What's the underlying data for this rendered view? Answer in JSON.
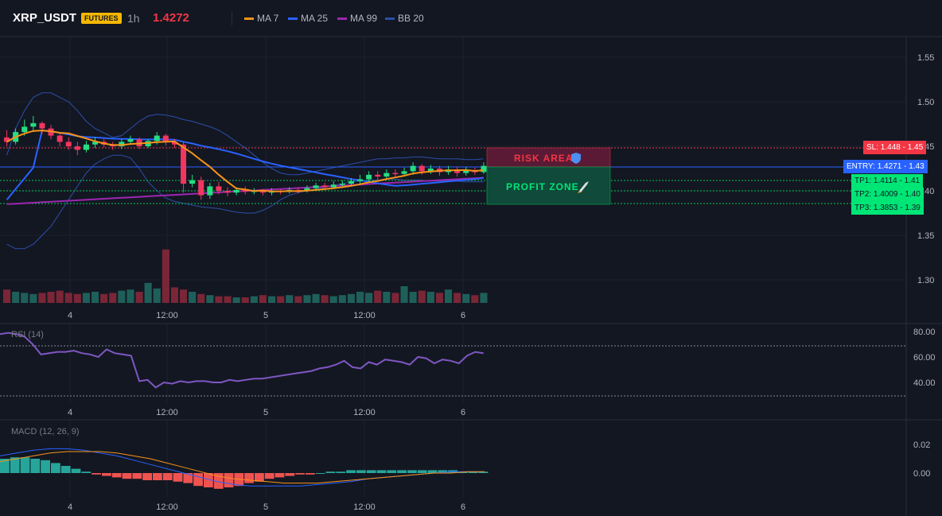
{
  "header": {
    "symbol": "XRP_USDT",
    "badge": "FUTURES",
    "timeframe": "1h",
    "price": "1.4272",
    "indicators": [
      {
        "label": "MA 7",
        "color": "#f7931a"
      },
      {
        "label": "MA 25",
        "color": "#2962ff"
      },
      {
        "label": "MA 99",
        "color": "#9c27b0"
      },
      {
        "label": "BB 20",
        "color": "#2b4fa8"
      }
    ]
  },
  "price_axis": [
    "1.55",
    "1.50",
    "1.45",
    "1.40",
    "1.35",
    "1.30"
  ],
  "time_axis": [
    "4",
    "12:00",
    "5",
    "12:00",
    "6"
  ],
  "levels": {
    "sl": "SL: 1.448 - 1.45",
    "entry": "ENTRY: 1.4271 - 1.43",
    "tp1": "TP1: 1.4114 - 1.41",
    "tp2": "TP2: 1.4009 - 1.40",
    "tp3": "TP3: 1.3853 - 1.39"
  },
  "zones": {
    "risk": "RISK AREA",
    "risk_icon": "shield-icon",
    "profit": "PROFIT ZONE",
    "profit_icon": "rocket-icon"
  },
  "rsi": {
    "label": "RSI (14)",
    "axis": [
      "80.00",
      "60.00",
      "40.00"
    ],
    "values": [
      78,
      79,
      78,
      76,
      70,
      62,
      63,
      64,
      64,
      65,
      63,
      62,
      60,
      66,
      63,
      62,
      61,
      41,
      42,
      36,
      40,
      39,
      41,
      40,
      41,
      41,
      40,
      40,
      42,
      41,
      42,
      43,
      43,
      44,
      45,
      46,
      47,
      48,
      49,
      51,
      52,
      54,
      57,
      52,
      51,
      56,
      54,
      58,
      57,
      56,
      54,
      60,
      59,
      55,
      58,
      57,
      55,
      61,
      64,
      63
    ]
  },
  "macd": {
    "label": "MACD (12, 26, 9)",
    "axis": [
      "0.02",
      "0.00"
    ],
    "hist": [
      0.01,
      0.011,
      0.011,
      0.01,
      0.009,
      0.007,
      0.005,
      0.003,
      0.001,
      -0.001,
      -0.002,
      -0.003,
      -0.004,
      -0.004,
      -0.005,
      -0.005,
      -0.005,
      -0.006,
      -0.007,
      -0.009,
      -0.01,
      -0.011,
      -0.01,
      -0.009,
      -0.007,
      -0.006,
      -0.004,
      -0.003,
      -0.002,
      -0.001,
      -0.001,
      0.0,
      0.001,
      0.001,
      0.002,
      0.002,
      0.002,
      0.002,
      0.002,
      0.002,
      0.002,
      0.002,
      0.002,
      0.002,
      0.002,
      0.001,
      0.001,
      0.001
    ]
  },
  "candles": [
    [
      1.46,
      1.455,
      1.468,
      1.45
    ],
    [
      1.455,
      1.466,
      1.47,
      1.452
    ],
    [
      1.466,
      1.472,
      1.48,
      1.462
    ],
    [
      1.472,
      1.476,
      1.484,
      1.466
    ],
    [
      1.476,
      1.47,
      1.478,
      1.464
    ],
    [
      1.47,
      1.462,
      1.474,
      1.458
    ],
    [
      1.462,
      1.455,
      1.466,
      1.45
    ],
    [
      1.455,
      1.45,
      1.46,
      1.446
    ],
    [
      1.45,
      1.446,
      1.455,
      1.44
    ],
    [
      1.446,
      1.452,
      1.456,
      1.443
    ],
    [
      1.452,
      1.455,
      1.46,
      1.448
    ],
    [
      1.455,
      1.452,
      1.458,
      1.449
    ],
    [
      1.452,
      1.45,
      1.455,
      1.446
    ],
    [
      1.45,
      1.455,
      1.458,
      1.447
    ],
    [
      1.455,
      1.458,
      1.462,
      1.452
    ],
    [
      1.458,
      1.45,
      1.46,
      1.447
    ],
    [
      1.45,
      1.456,
      1.458,
      1.448
    ],
    [
      1.456,
      1.462,
      1.466,
      1.452
    ],
    [
      1.462,
      1.455,
      1.464,
      1.451
    ],
    [
      1.455,
      1.452,
      1.458,
      1.448
    ],
    [
      1.452,
      1.408,
      1.455,
      1.398
    ],
    [
      1.408,
      1.412,
      1.418,
      1.404
    ],
    [
      1.412,
      1.395,
      1.416,
      1.39
    ],
    [
      1.395,
      1.405,
      1.409,
      1.391
    ],
    [
      1.405,
      1.4,
      1.41,
      1.396
    ],
    [
      1.4,
      1.398,
      1.404,
      1.394
    ],
    [
      1.398,
      1.401,
      1.404,
      1.395
    ],
    [
      1.401,
      1.399,
      1.405,
      1.396
    ],
    [
      1.399,
      1.4,
      1.403,
      1.396
    ],
    [
      1.4,
      1.398,
      1.402,
      1.395
    ],
    [
      1.398,
      1.4,
      1.403,
      1.395
    ],
    [
      1.4,
      1.399,
      1.402,
      1.396
    ],
    [
      1.399,
      1.401,
      1.404,
      1.397
    ],
    [
      1.401,
      1.4,
      1.404,
      1.397
    ],
    [
      1.4,
      1.403,
      1.406,
      1.398
    ],
    [
      1.403,
      1.406,
      1.409,
      1.4
    ],
    [
      1.406,
      1.404,
      1.409,
      1.401
    ],
    [
      1.404,
      1.407,
      1.411,
      1.402
    ],
    [
      1.407,
      1.408,
      1.412,
      1.404
    ],
    [
      1.408,
      1.411,
      1.414,
      1.405
    ],
    [
      1.411,
      1.413,
      1.418,
      1.408
    ],
    [
      1.413,
      1.418,
      1.422,
      1.41
    ],
    [
      1.418,
      1.416,
      1.422,
      1.412
    ],
    [
      1.416,
      1.42,
      1.424,
      1.413
    ],
    [
      1.42,
      1.419,
      1.424,
      1.415
    ],
    [
      1.419,
      1.422,
      1.426,
      1.416
    ],
    [
      1.422,
      1.428,
      1.432,
      1.418
    ],
    [
      1.428,
      1.422,
      1.43,
      1.418
    ],
    [
      1.422,
      1.425,
      1.429,
      1.419
    ],
    [
      1.425,
      1.421,
      1.428,
      1.417
    ],
    [
      1.421,
      1.424,
      1.428,
      1.418
    ],
    [
      1.424,
      1.42,
      1.427,
      1.416
    ],
    [
      1.42,
      1.423,
      1.427,
      1.417
    ],
    [
      1.423,
      1.421,
      1.426,
      1.418
    ],
    [
      1.421,
      1.428,
      1.432,
      1.419
    ]
  ],
  "volumes": [
    12,
    10,
    9,
    8,
    9,
    10,
    11,
    9,
    8,
    9,
    10,
    8,
    9,
    11,
    12,
    10,
    18,
    13,
    48,
    14,
    12,
    10,
    8,
    7,
    6,
    6,
    5,
    5,
    6,
    7,
    6,
    6,
    7,
    6,
    7,
    8,
    7,
    6,
    7,
    8,
    10,
    9,
    11,
    10,
    9,
    15,
    10,
    11,
    10,
    9,
    12,
    9,
    8,
    7,
    9
  ]
}
